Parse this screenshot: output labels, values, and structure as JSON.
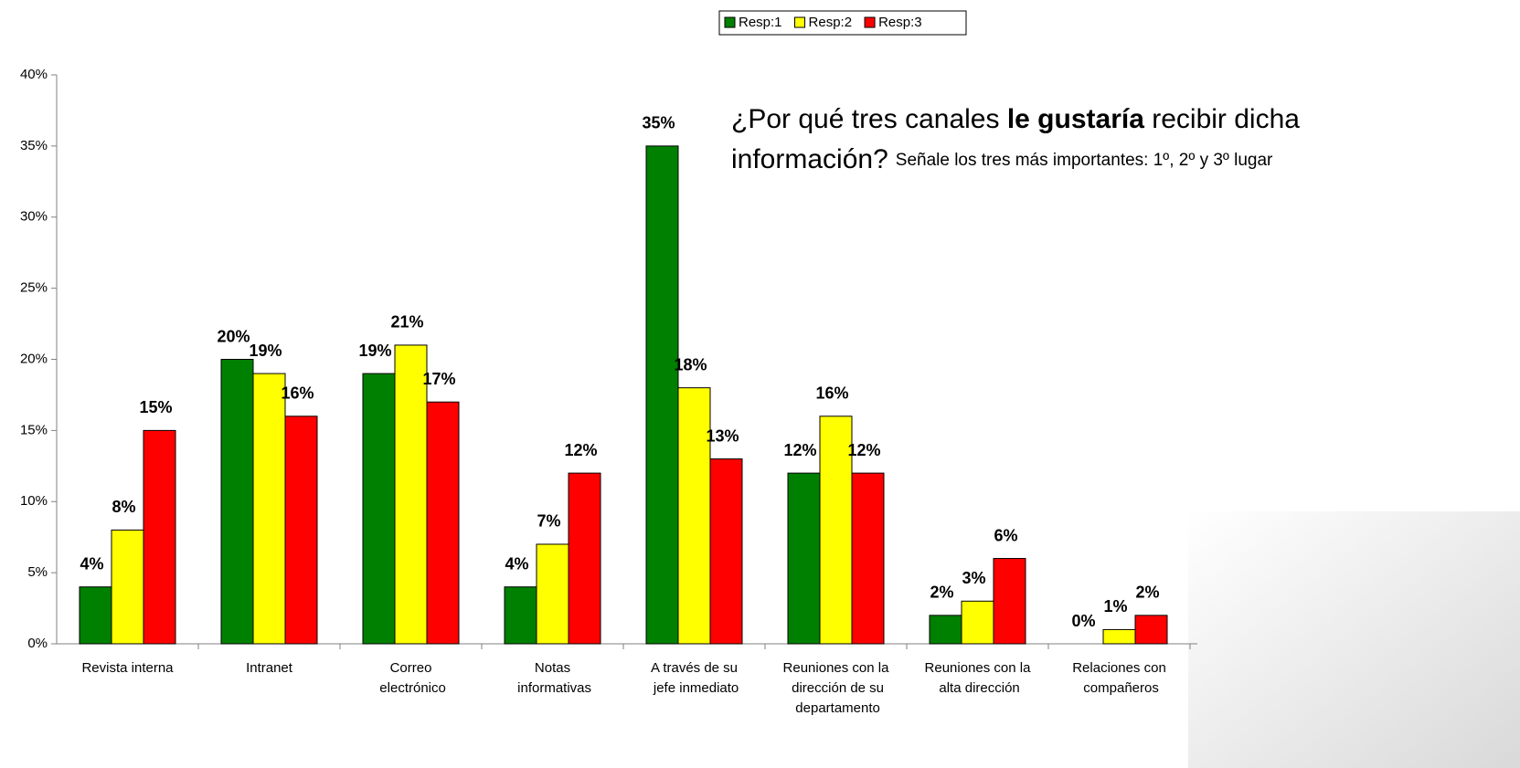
{
  "chart_data": {
    "type": "bar",
    "title": "¿Por qué tres canales ",
    "title_bold": "le gustaría",
    "title_end": " recibir dicha",
    "title_line2": "información?",
    "subtitle": "Señale los tres más importantes: 1º, 2º y 3º lugar",
    "categories": [
      "Revista interna",
      "Intranet",
      "Correo electrónico",
      "Notas informativas",
      "A través de su jefe inmediato",
      "Reuniones con la dirección de su departamento",
      "Reuniones con la alta dirección",
      "Relaciones con compañeros"
    ],
    "series": [
      {
        "name": "Resp:1",
        "color": "#008000",
        "values": [
          4,
          20,
          19,
          4,
          35,
          12,
          2,
          0
        ],
        "value_labels": [
          "4%",
          "20%",
          "19%",
          "4%",
          "35%",
          "12%",
          "2%",
          "0%"
        ]
      },
      {
        "name": "Resp:2",
        "color": "#ffff00",
        "values": [
          8,
          19,
          21,
          7,
          18,
          16,
          3,
          1
        ],
        "value_labels": [
          "8%",
          "19%",
          "21%",
          "7%",
          "18%",
          "16%",
          "3%",
          "1%"
        ]
      },
      {
        "name": "Resp:3",
        "color": "#ff0000",
        "values": [
          15,
          16,
          17,
          12,
          13,
          12,
          6,
          2
        ],
        "value_labels": [
          "15%",
          "16%",
          "17%",
          "12%",
          "13%",
          "12%",
          "6%",
          "2%"
        ]
      }
    ],
    "ylim": [
      0,
      40
    ],
    "yticks": [
      {
        "value": 0,
        "label": "0%"
      },
      {
        "value": 5,
        "label": "5%"
      },
      {
        "value": 10,
        "label": "10%"
      },
      {
        "value": 15,
        "label": "15%"
      },
      {
        "value": 20,
        "label": "20%"
      },
      {
        "value": 25,
        "label": "25%"
      },
      {
        "value": 30,
        "label": "30%"
      },
      {
        "value": 35,
        "label": "35%"
      },
      {
        "value": 40,
        "label": "40%"
      }
    ],
    "grid": false,
    "legend": "top"
  }
}
